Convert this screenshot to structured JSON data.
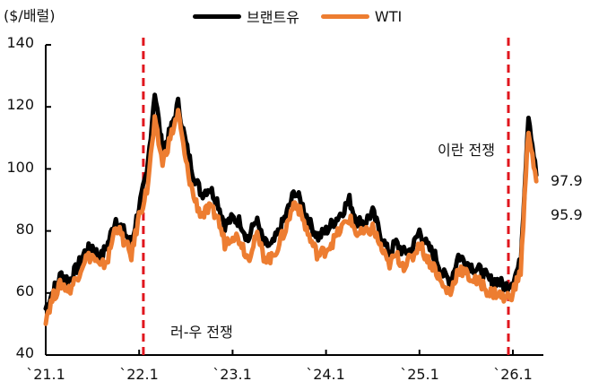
{
  "chart_data": {
    "type": "line",
    "title": "",
    "ylabel": "($/배럴)",
    "xlabel": "",
    "ylim": [
      40,
      140
    ],
    "yticks": [
      40,
      60,
      80,
      100,
      120,
      140
    ],
    "xticks": [
      "`21.1",
      "`22.1",
      "`23.1",
      "`24.1",
      "`25.1",
      "`26.1"
    ],
    "grid": false,
    "legend_position": "top-center",
    "x": [
      "2021-01",
      "2021-02",
      "2021-03",
      "2021-04",
      "2021-05",
      "2021-06",
      "2021-07",
      "2021-08",
      "2021-09",
      "2021-10",
      "2021-11",
      "2021-12",
      "2022-01",
      "2022-02",
      "2022-03",
      "2022-04",
      "2022-05",
      "2022-06",
      "2022-07",
      "2022-08",
      "2022-09",
      "2022-10",
      "2022-11",
      "2022-12",
      "2023-01",
      "2023-02",
      "2023-03",
      "2023-04",
      "2023-05",
      "2023-06",
      "2023-07",
      "2023-08",
      "2023-09",
      "2023-10",
      "2023-11",
      "2023-12",
      "2024-01",
      "2024-02",
      "2024-03",
      "2024-04",
      "2024-05",
      "2024-06",
      "2024-07",
      "2024-08",
      "2024-09",
      "2024-10",
      "2024-11",
      "2024-12",
      "2025-01",
      "2025-02",
      "2025-03",
      "2025-04",
      "2025-05",
      "2025-06",
      "2025-07",
      "2025-08",
      "2025-09",
      "2025-10",
      "2025-11",
      "2025-12",
      "2026-01",
      "2026-02",
      "2026-03",
      "2026-04"
    ],
    "series": [
      {
        "name": "브랜트유",
        "color": "#000000",
        "values": [
          55,
          61,
          66,
          64,
          68,
          73,
          75,
          71,
          76,
          84,
          80,
          76,
          88,
          98,
          125,
          106,
          112,
          121,
          108,
          98,
          92,
          94,
          90,
          82,
          84,
          83,
          77,
          84,
          76,
          75,
          80,
          86,
          93,
          88,
          82,
          78,
          80,
          83,
          86,
          90,
          83,
          83,
          86,
          79,
          73,
          76,
          73,
          74,
          80,
          75,
          72,
          66,
          64,
          72,
          70,
          68,
          67,
          64,
          64,
          62,
          64,
          70,
          118,
          98
        ],
        "last_value": 97.9
      },
      {
        "name": "WTI",
        "color": "#ED7D31",
        "values": [
          52,
          59,
          63,
          61,
          65,
          71,
          72,
          68,
          71,
          82,
          77,
          72,
          85,
          93,
          115,
          102,
          110,
          118,
          102,
          91,
          85,
          87,
          85,
          76,
          79,
          77,
          71,
          79,
          72,
          71,
          76,
          82,
          90,
          84,
          77,
          72,
          74,
          77,
          81,
          84,
          79,
          79,
          81,
          75,
          69,
          72,
          69,
          71,
          76,
          71,
          68,
          62,
          60,
          68,
          66,
          64,
          63,
          60,
          60,
          58,
          60,
          67,
          113,
          96
        ],
        "last_value": 95.9
      }
    ],
    "vertical_markers": [
      {
        "x": "2022-02",
        "label": "러-우 전쟁",
        "color": "#E0161E",
        "style": "dashed"
      },
      {
        "x": "2026-01",
        "label": "이란 전쟁",
        "color": "#E0161E",
        "style": "dashed"
      }
    ],
    "end_labels": [
      "97.9",
      "95.9"
    ]
  },
  "legend": {
    "items": [
      {
        "label": "브랜트유",
        "color": "#000000"
      },
      {
        "label": "WTI",
        "color": "#ED7D31"
      }
    ]
  },
  "annotations": {
    "russia_ukraine": "러-우 전쟁",
    "iran": "이란 전쟁"
  }
}
